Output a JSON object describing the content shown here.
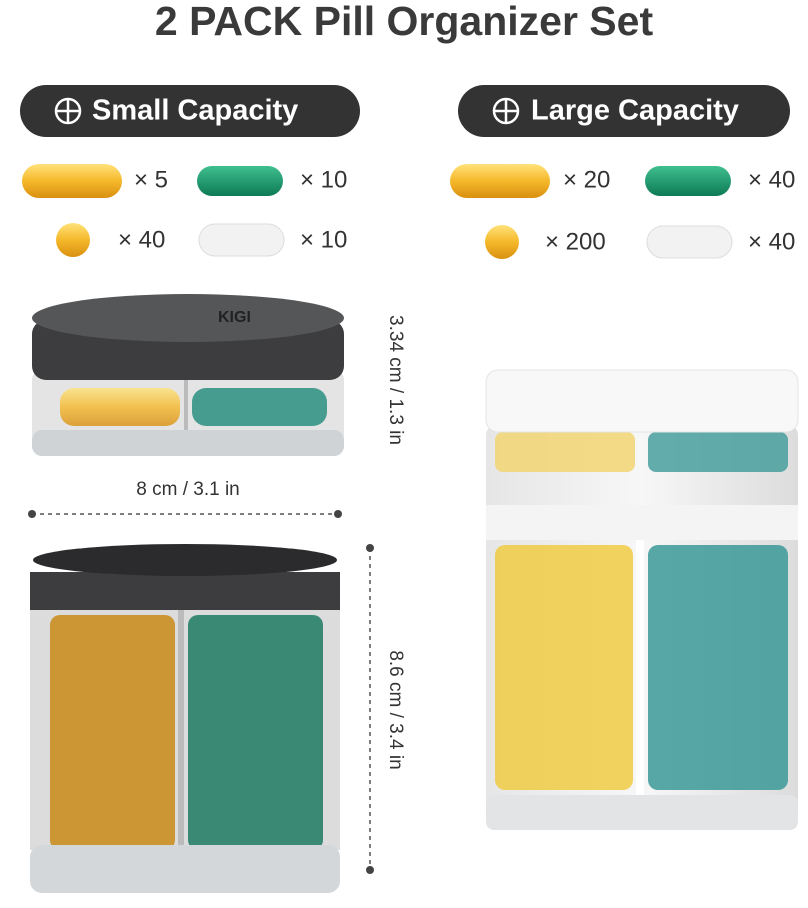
{
  "title": "2 PACK Pill Organizer Set",
  "brand": "KIGI",
  "panels": [
    {
      "label": "Small Capacity",
      "counts": [
        "× 5",
        "× 10",
        "× 40",
        "× 10"
      ]
    },
    {
      "label": "Large Capacity",
      "counts": [
        "× 20",
        "× 40",
        "× 200",
        "× 40"
      ]
    }
  ],
  "dimensions": {
    "small_height": "3.34 cm / 1.3 in",
    "width": "8 cm / 3.1 in",
    "tall_height": "8.6 cm / 3.4 in"
  }
}
